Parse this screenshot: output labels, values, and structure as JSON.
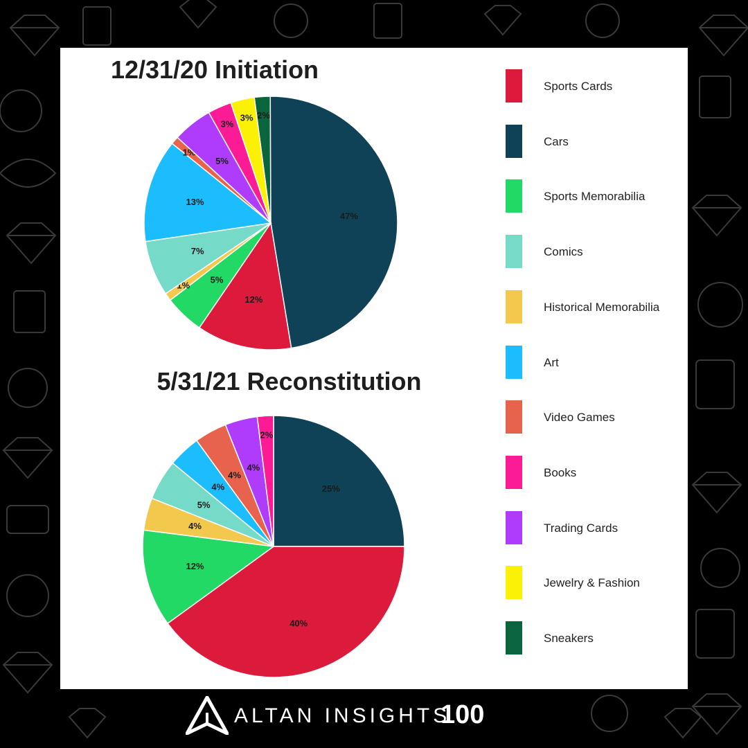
{
  "chart_data": [
    {
      "type": "pie",
      "title": "12/31/20 Initiation",
      "slices": [
        {
          "label": "Sneakers",
          "value": 2,
          "display": "2%"
        },
        {
          "label": "Cars",
          "value": 47,
          "display": "47%"
        },
        {
          "label": "Sports Cards",
          "value": 12,
          "display": "12%"
        },
        {
          "label": "Sports Memorabilia",
          "value": 5,
          "display": "5%"
        },
        {
          "label": "Historical Memorabilia",
          "value": 1,
          "display": "1%"
        },
        {
          "label": "Comics",
          "value": 7,
          "display": "7%"
        },
        {
          "label": "Art",
          "value": 13,
          "display": "13%"
        },
        {
          "label": "Video Games",
          "value": 1,
          "display": "1%"
        },
        {
          "label": "Trading Cards",
          "value": 5,
          "display": "5%"
        },
        {
          "label": "Books",
          "value": 3,
          "display": "3%"
        },
        {
          "label": "Jewelry & Fashion",
          "value": 3,
          "display": "3%"
        }
      ]
    },
    {
      "type": "pie",
      "title": "5/31/21 Reconstitution",
      "slices": [
        {
          "label": "Cars",
          "value": 25,
          "display": "25%"
        },
        {
          "label": "Sports Cards",
          "value": 40,
          "display": "40%"
        },
        {
          "label": "Sports Memorabilia",
          "value": 12,
          "display": "12%"
        },
        {
          "label": "Historical Memorabilia",
          "value": 4,
          "display": "4%"
        },
        {
          "label": "Comics",
          "value": 5,
          "display": "5%"
        },
        {
          "label": "Art",
          "value": 4,
          "display": "4%"
        },
        {
          "label": "Video Games",
          "value": 4,
          "display": "4%"
        },
        {
          "label": "Trading Cards",
          "value": 4,
          "display": "4%"
        },
        {
          "label": "Books",
          "value": 2,
          "display": "2%"
        }
      ]
    }
  ],
  "legend": [
    {
      "label": "Sports Cards",
      "color": "#dc1a3c"
    },
    {
      "label": "Cars",
      "color": "#0f4257"
    },
    {
      "label": "Sports Memorabilia",
      "color": "#22d965"
    },
    {
      "label": "Comics",
      "color": "#76dac8"
    },
    {
      "label": "Historical Memorabilia",
      "color": "#f2c94c"
    },
    {
      "label": "Art",
      "color": "#1cbdfd"
    },
    {
      "label": "Video Games",
      "color": "#e8634d"
    },
    {
      "label": "Books",
      "color": "#fb1b95"
    },
    {
      "label": "Trading Cards",
      "color": "#b03cfb"
    },
    {
      "label": "Jewelry & Fashion",
      "color": "#fbf107"
    },
    {
      "label": "Sneakers",
      "color": "#0a653c"
    }
  ],
  "footer": {
    "brand": "ALTAN INSIGHTS",
    "number": "100"
  }
}
